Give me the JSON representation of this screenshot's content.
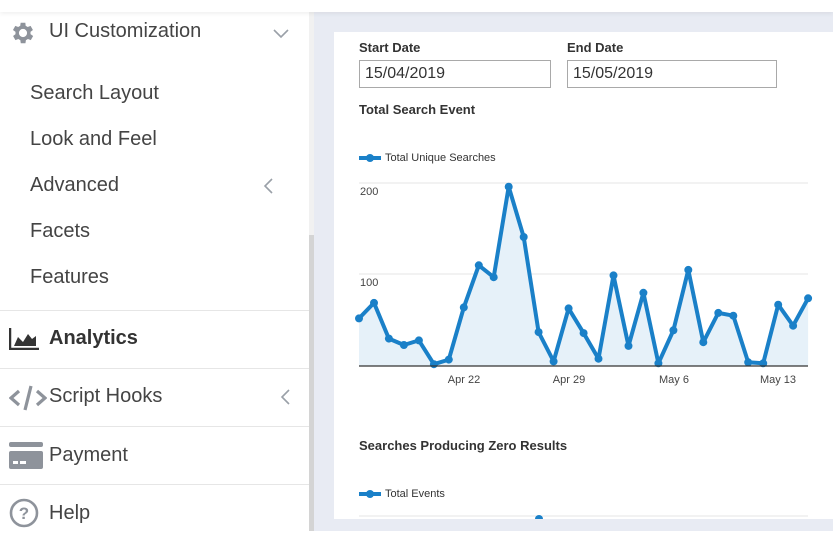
{
  "sidebar": {
    "ui_customization": {
      "label": "UI Customization",
      "icon": "gear-icon",
      "expanded": true,
      "children": [
        {
          "label": "Search Layout"
        },
        {
          "label": "Look and Feel"
        },
        {
          "label": "Advanced",
          "has_submenu": true
        },
        {
          "label": "Facets"
        },
        {
          "label": "Features"
        }
      ]
    },
    "items": [
      {
        "label": "Analytics",
        "icon": "area-chart-icon",
        "active": true
      },
      {
        "label": "Script Hooks",
        "icon": "code-icon",
        "has_submenu": true
      },
      {
        "label": "Payment",
        "icon": "credit-card-icon"
      },
      {
        "label": "Help",
        "icon": "question-circle-icon"
      }
    ]
  },
  "filters": {
    "start_date_label": "Start Date",
    "start_date_value": "15/04/2019",
    "end_date_label": "End Date",
    "end_date_value": "15/05/2019"
  },
  "charts": {
    "total_search_event": {
      "title": "Total Search Event",
      "legend": "Total Unique Searches"
    },
    "zero_results": {
      "title": "Searches Producing Zero Results",
      "legend": "Total Events"
    }
  },
  "colors": {
    "line": "#1a80c8",
    "area": "#e6f1f9",
    "background": "#e8ebf3"
  },
  "chart_data": [
    {
      "type": "area",
      "title": "Total Search Event",
      "legend": [
        "Total Unique Searches"
      ],
      "legend_position": "top-left",
      "xlabel": "",
      "ylabel": "",
      "ylim": [
        0,
        200
      ],
      "y_ticks": [
        100,
        200
      ],
      "x_ticks": [
        "Apr 22",
        "Apr 29",
        "May 6",
        "May 13"
      ],
      "grid": true,
      "x": [
        "Apr 15",
        "Apr 16",
        "Apr 17",
        "Apr 18",
        "Apr 19",
        "Apr 20",
        "Apr 21",
        "Apr 22",
        "Apr 23",
        "Apr 24",
        "Apr 25",
        "Apr 26",
        "Apr 27",
        "Apr 28",
        "Apr 29",
        "Apr 30",
        "May 1",
        "May 2",
        "May 3",
        "May 4",
        "May 5",
        "May 6",
        "May 7",
        "May 8",
        "May 9",
        "May 10",
        "May 11",
        "May 12",
        "May 13",
        "May 14",
        "May 15"
      ],
      "series": [
        {
          "name": "Total Unique Searches",
          "values": [
            52,
            69,
            30,
            23,
            28,
            2,
            7,
            64,
            110,
            97,
            196,
            141,
            37,
            5,
            63,
            36,
            8,
            99,
            22,
            80,
            3,
            39,
            105,
            26,
            58,
            55,
            4,
            3,
            67,
            44,
            74
          ]
        }
      ]
    },
    {
      "type": "line",
      "title": "Searches Producing Zero Results",
      "legend": [
        "Total Events"
      ],
      "legend_position": "top-left",
      "series": [
        {
          "name": "Total Events",
          "values": []
        }
      ]
    }
  ]
}
